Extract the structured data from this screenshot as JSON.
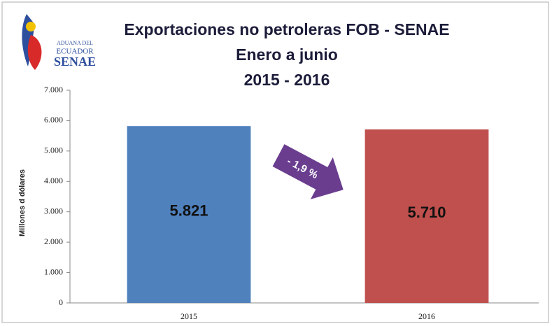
{
  "chart_data": {
    "type": "bar",
    "title": [
      "Exportaciones no petroleras FOB - SENAE",
      "Enero a junio",
      "2015 - 2016"
    ],
    "logo": [
      "ADUANA DEL",
      "ECUADOR",
      "SENAE"
    ],
    "y_label": "Millones d dólares",
    "annotation": "- 1,9 %",
    "categories": [
      "2015",
      "2016"
    ],
    "values": [
      5821,
      5710
    ],
    "value_labels": [
      "5.821",
      "5.710"
    ],
    "colors": [
      "#4f81bd",
      "#c0504d"
    ],
    "ylim": [
      0,
      7000
    ],
    "yticks": [
      0,
      {
        "value": 1000,
        "label": "1.000"
      },
      {
        "value": 2000,
        "label": "2.000"
      },
      {
        "value": 3000,
        "label": "3.000"
      },
      {
        "value": 4000,
        "label": "4.000"
      },
      {
        "value": 5000,
        "label": "5.000"
      },
      {
        "value": 6000,
        "label": "6.000"
      },
      {
        "value": 7000,
        "label": "7.000"
      }
    ],
    "grid": false
  }
}
